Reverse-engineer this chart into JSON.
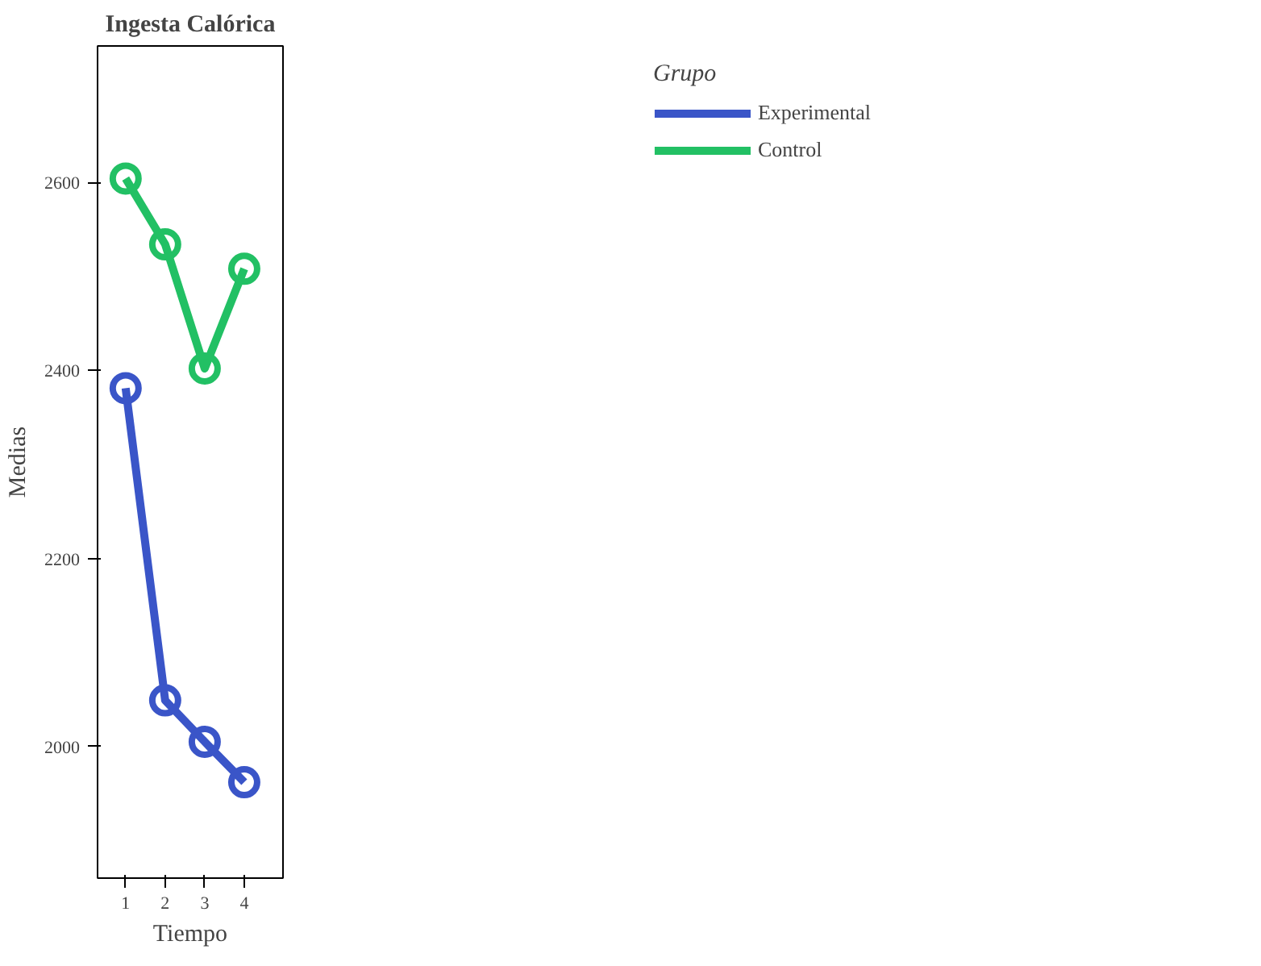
{
  "chart_data": {
    "type": "line",
    "title": "Ingesta Calórica",
    "xlabel": "Tiempo",
    "ylabel": "Medias",
    "legend_title": "Grupo",
    "legend": "right",
    "marker": "circle",
    "line_style": "solid",
    "grid": false,
    "x": [
      1,
      2,
      3,
      4
    ],
    "xlim": [
      0.29,
      4.98
    ],
    "xticks": [
      1,
      2,
      3,
      4
    ],
    "ylim": [
      1860,
      2745
    ],
    "yticks": [
      2000,
      2200,
      2400,
      2600
    ],
    "series": [
      {
        "name": "Experimental",
        "color": "#3a55c8",
        "values": [
          2381,
          2049,
          2005,
          1962
        ]
      },
      {
        "name": "Control",
        "color": "#22c064",
        "values": [
          2604,
          2534,
          2402,
          2508
        ]
      }
    ]
  }
}
